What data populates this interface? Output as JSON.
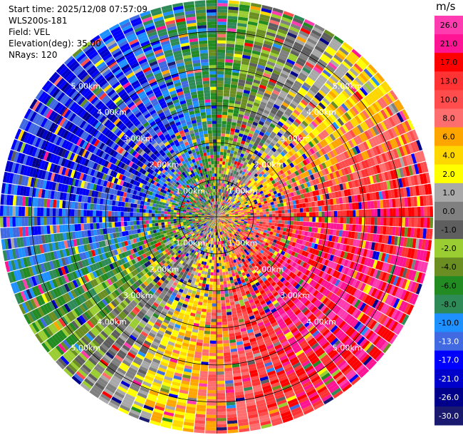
{
  "header": {
    "start_time": "Start time: 2025/12/08 07:57:09",
    "instrument": "WLS200s-181",
    "field": "Field: VEL",
    "elevation": "Elevation(deg): 35.00",
    "nrays": "NRays: 120"
  },
  "colorbar": {
    "unit": "m/s",
    "ticks": [
      "26.0",
      "21.0",
      "17.0",
      "13.0",
      "10.0",
      "8.0",
      "6.0",
      "4.0",
      "2.0",
      "1.0",
      "0.0",
      "-1.0",
      "-2.0",
      "-4.0",
      "-6.0",
      "-8.0",
      "-10.0",
      "-13.0",
      "-17.0",
      "-21.0",
      "-26.0",
      "-30.0"
    ],
    "colors": [
      "#ff3bb0",
      "#ff1493",
      "#ff0000",
      "#ff3333",
      "#ff4c4c",
      "#ff6e6e",
      "#ffa500",
      "#ffd700",
      "#ffff00",
      "#a9a9a9",
      "#808080",
      "#5e5e5e",
      "#9acd32",
      "#6b8e23",
      "#228b22",
      "#2e8b57",
      "#1e90ff",
      "#4169e1",
      "#0000ff",
      "#0000cd",
      "#00008b",
      "#191970"
    ]
  },
  "chart_data": {
    "type": "heatmap",
    "projection": "polar-ppi",
    "field": "VEL",
    "unit": "m/s",
    "elevation_deg": 35.0,
    "n_rays": 120,
    "value_range": [
      -30.0,
      26.0
    ],
    "range_rings_km": [
      1.0,
      2.0,
      3.0,
      4.0,
      5.0
    ],
    "range_ring_labels": [
      "1.00km",
      "2.00km",
      "3.00km",
      "4.00km",
      "5.00km"
    ],
    "max_range_km": 5.85,
    "notes_pattern": "positive velocities (orange/red/pink) to the east and south-southeast, negative velocities (blue) to the west and north-northwest, noisy mixed colors elsewhere"
  }
}
